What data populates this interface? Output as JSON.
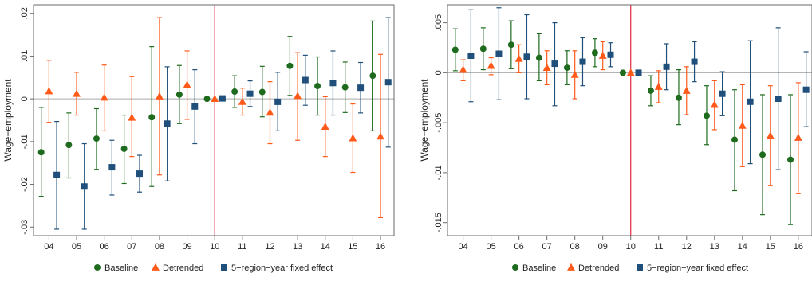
{
  "colors": {
    "baseline": "#1e6b1e",
    "detrended": "#ff5a1a",
    "fixed_effect": "#1f4f7a",
    "reference_line": "#e0283a",
    "zero_line": "#aaaaaa",
    "frame": "#6a6a6a"
  },
  "legend": {
    "items": [
      {
        "label": "Baseline",
        "marker": "circle",
        "color": "#1e6b1e"
      },
      {
        "label": "Detrended",
        "marker": "triangle",
        "color": "#ff5a1a"
      },
      {
        "label": "5-region-year fixed effect",
        "marker": "square",
        "color": "#1f4f7a"
      }
    ]
  },
  "chart_data": [
    {
      "type": "scatter",
      "ylabel": "Wage-employment",
      "xlabel": "",
      "categories": [
        "04",
        "05",
        "06",
        "07",
        "08",
        "09",
        "10",
        "11",
        "12",
        "13",
        "14",
        "15",
        "16"
      ],
      "yticks": [
        ".02",
        ".01",
        "0",
        "-.01",
        "-.02",
        "-.03"
      ],
      "ytick_values": [
        0.02,
        0.01,
        0,
        -0.01,
        -0.02,
        -0.03
      ],
      "ylim": [
        -0.032,
        0.022
      ],
      "reference_x": "10",
      "legend_position": "bottom",
      "series": [
        {
          "name": "Baseline",
          "marker": "circle",
          "offset": -0.28,
          "values": [
            -0.0125,
            -0.0108,
            -0.0093,
            -0.0117,
            -0.0043,
            0.001,
            0,
            0.0017,
            0.0016,
            0.0077,
            0.003,
            0.0027,
            0.0054
          ],
          "lower": [
            -0.0228,
            -0.0185,
            -0.0165,
            -0.0198,
            -0.0205,
            -0.0058,
            0,
            -0.002,
            -0.0042,
            0.0008,
            -0.0038,
            -0.0032,
            -0.0075
          ],
          "upper": [
            -0.002,
            -0.0033,
            -0.0023,
            -0.0038,
            0.0122,
            0.0078,
            0,
            0.0054,
            0.0076,
            0.0146,
            0.0098,
            0.0086,
            0.0182
          ]
        },
        {
          "name": "Detrended",
          "marker": "triangle",
          "offset": 0,
          "values": [
            0.0018,
            0.0012,
            0.0003,
            -0.0044,
            0.0006,
            0.0033,
            0,
            -0.0007,
            -0.0032,
            0.0007,
            -0.0065,
            -0.0092,
            -0.0088
          ],
          "lower": [
            -0.0055,
            -0.0038,
            -0.0075,
            -0.0135,
            -0.0178,
            -0.0048,
            0,
            -0.0038,
            -0.0105,
            -0.0097,
            -0.0135,
            -0.0172,
            -0.0278
          ],
          "upper": [
            0.009,
            0.0062,
            0.0079,
            0.0052,
            0.019,
            0.0112,
            0,
            0.0025,
            0.004,
            0.0108,
            0.0005,
            -0.0012,
            0.0104
          ]
        },
        {
          "name": "5-region-year fixed effect",
          "marker": "square",
          "offset": 0.28,
          "values": [
            -0.0178,
            -0.0205,
            -0.016,
            -0.0175,
            -0.0058,
            -0.0018,
            0.0001,
            0.0012,
            -0.0007,
            0.0044,
            0.0037,
            0.0026,
            0.0039
          ],
          "lower": [
            -0.0305,
            -0.0305,
            -0.0225,
            -0.0218,
            -0.0192,
            -0.0105,
            -0.0002,
            -0.0018,
            -0.0075,
            -0.0015,
            -0.0038,
            -0.0033,
            -0.0113
          ],
          "upper": [
            -0.0053,
            -0.0105,
            -0.0097,
            -0.0132,
            0.0075,
            0.0068,
            0.0004,
            0.0042,
            0.0062,
            0.0102,
            0.0112,
            0.0085,
            0.019
          ]
        }
      ]
    },
    {
      "type": "scatter",
      "ylabel": "Wage-employment",
      "xlabel": "",
      "categories": [
        "04",
        "05",
        "06",
        "07",
        "08",
        "09",
        "10",
        "11",
        "12",
        "13",
        "14",
        "15",
        "16"
      ],
      "yticks": [
        ".005",
        "0",
        "-.005",
        "-.01",
        "-.015"
      ],
      "ytick_values": [
        0.005,
        0,
        -0.005,
        -0.01,
        -0.015
      ],
      "ylim": [
        -0.0163,
        0.0068
      ],
      "reference_x": "10",
      "legend_position": "bottom",
      "series": [
        {
          "name": "Baseline",
          "marker": "circle",
          "offset": -0.28,
          "values": [
            0.0023,
            0.0024,
            0.0028,
            0.0015,
            0.0005,
            0.002,
            0,
            -0.0018,
            -0.0025,
            -0.0043,
            -0.0067,
            -0.0082,
            -0.0087
          ],
          "lower": [
            0.0002,
            0.0003,
            0.0004,
            -0.0008,
            -0.0012,
            0.0006,
            0,
            -0.0033,
            -0.0052,
            -0.0072,
            -0.0118,
            -0.0142,
            -0.0152
          ],
          "upper": [
            0.0044,
            0.0045,
            0.0052,
            0.0039,
            0.0022,
            0.0034,
            0,
            -0.0003,
            0.0003,
            -0.0013,
            -0.0017,
            -0.0022,
            -0.0022
          ]
        },
        {
          "name": "Detrended",
          "marker": "triangle",
          "offset": 0,
          "values": [
            0.0003,
            0.0007,
            0.0014,
            0.0005,
            -0.0002,
            0.0017,
            0,
            -0.0014,
            -0.0018,
            -0.0032,
            -0.0053,
            -0.0063,
            -0.0065
          ],
          "lower": [
            -0.0008,
            -0.0002,
            0,
            -0.0012,
            -0.0026,
            0.0003,
            0,
            -0.003,
            -0.0042,
            -0.0057,
            -0.0094,
            -0.0113,
            -0.0121
          ],
          "upper": [
            0.0013,
            0.0015,
            0.0028,
            0.0022,
            0.0022,
            0.0031,
            0,
            0.0002,
            0.0006,
            -0.0008,
            -0.0012,
            -0.0013,
            -0.001
          ]
        },
        {
          "name": "5-region-year fixed effect",
          "marker": "square",
          "offset": 0.28,
          "values": [
            0.0017,
            0.0019,
            0.0016,
            0.0009,
            0.0011,
            0.0018,
            0,
            0.0006,
            0.0011,
            -0.0021,
            -0.0029,
            -0.0026,
            -0.0017
          ],
          "lower": [
            -0.0029,
            -0.0027,
            -0.0026,
            -0.0033,
            -0.0013,
            0.0006,
            -0.0001,
            -0.0017,
            -0.0009,
            -0.0043,
            -0.0091,
            -0.0097,
            -0.0054
          ],
          "upper": [
            0.0063,
            0.0065,
            0.0058,
            0.005,
            0.0035,
            0.003,
            0.0001,
            0.0029,
            0.0031,
            0.0001,
            0.0032,
            0.0045,
            0.0021
          ]
        }
      ]
    }
  ]
}
